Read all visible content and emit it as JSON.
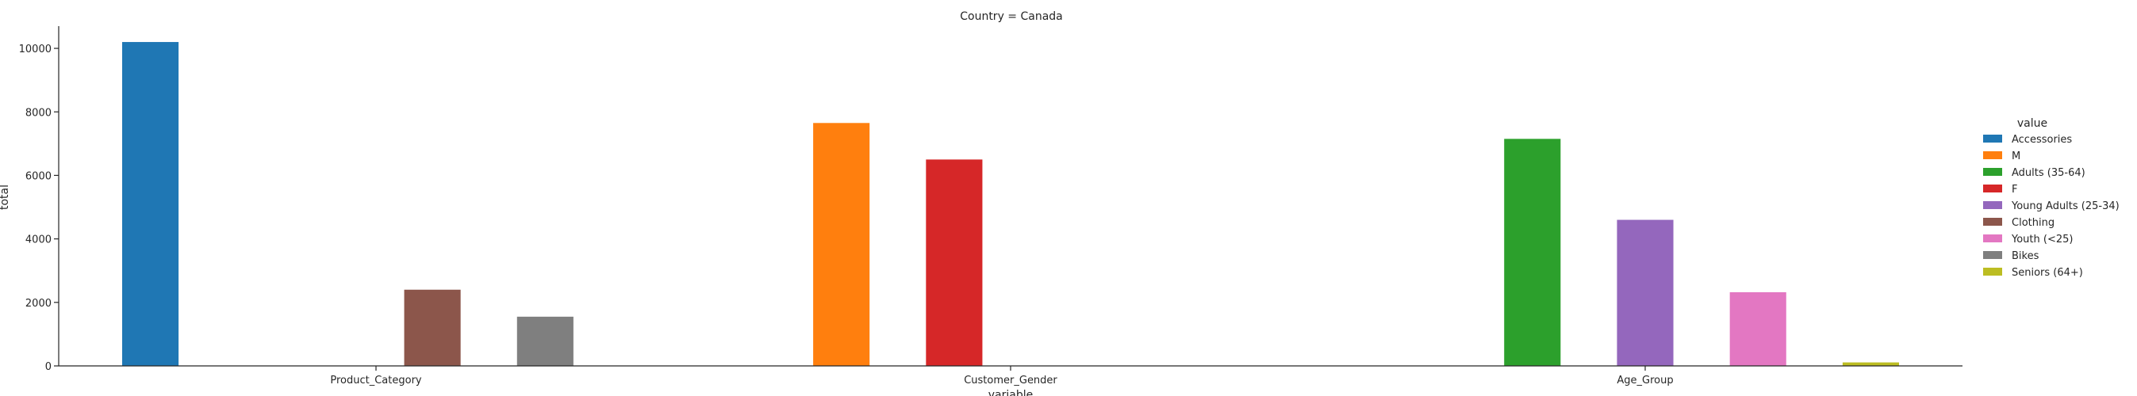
{
  "chart_data": {
    "type": "bar",
    "title": "Country = Canada",
    "xlabel": "variable",
    "ylabel": "total",
    "ylim": [
      0,
      10700
    ],
    "yticks": [
      0,
      2000,
      4000,
      6000,
      8000,
      10000
    ],
    "grid": false,
    "legend_placement": "right",
    "legend_title": "value",
    "categories": [
      "Product_Category",
      "Customer_Gender",
      "Age_Group"
    ],
    "series": [
      {
        "name": "Accessories",
        "color": "#1f77b4",
        "values": [
          10200,
          null,
          null
        ]
      },
      {
        "name": "M",
        "color": "#ff7f0e",
        "values": [
          null,
          7650,
          null
        ]
      },
      {
        "name": "Adults (35-64)",
        "color": "#2ca02c",
        "values": [
          null,
          null,
          7150
        ]
      },
      {
        "name": "F",
        "color": "#d62728",
        "values": [
          null,
          6500,
          null
        ]
      },
      {
        "name": "Young Adults (25-34)",
        "color": "#9467bd",
        "values": [
          null,
          null,
          4600
        ]
      },
      {
        "name": "Clothing",
        "color": "#8c564b",
        "values": [
          2400,
          null,
          null
        ]
      },
      {
        "name": "Youth (<25)",
        "color": "#e377c2",
        "values": [
          null,
          null,
          2320
        ]
      },
      {
        "name": "Bikes",
        "color": "#7f7f7f",
        "values": [
          1550,
          null,
          null
        ]
      },
      {
        "name": "Seniors (64+)",
        "color": "#bcbd22",
        "values": [
          null,
          null,
          110
        ]
      }
    ]
  }
}
